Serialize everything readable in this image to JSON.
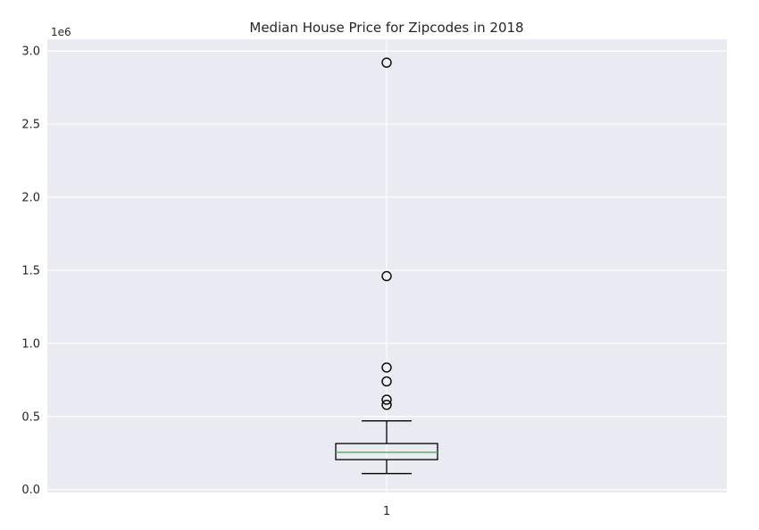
{
  "chart_data": {
    "type": "box",
    "title": "Median House Price for Zipcodes in 2018",
    "xlabel": "",
    "ylabel": "",
    "y_scale_label": "1e6",
    "categories": [
      "1"
    ],
    "box": {
      "whisker_low": 0.11,
      "q1": 0.205,
      "median": 0.255,
      "q3": 0.315,
      "whisker_high": 0.47
    },
    "outliers": [
      0.58,
      0.615,
      0.74,
      0.835,
      1.46,
      2.92
    ],
    "ylim": [
      -0.02,
      3.08
    ],
    "yticks": [
      {
        "value": 0.0,
        "label": "0.0"
      },
      {
        "value": 0.5,
        "label": "0.5"
      },
      {
        "value": 1.0,
        "label": "1.0"
      },
      {
        "value": 1.5,
        "label": "1.5"
      },
      {
        "value": 2.0,
        "label": "2.0"
      },
      {
        "value": 2.5,
        "label": "2.5"
      },
      {
        "value": 3.0,
        "label": "3.0"
      }
    ],
    "grid": true,
    "colors": {
      "background": "#eaeaf2",
      "grid": "#ffffff",
      "box": "#000000",
      "median": "#55a868"
    }
  }
}
